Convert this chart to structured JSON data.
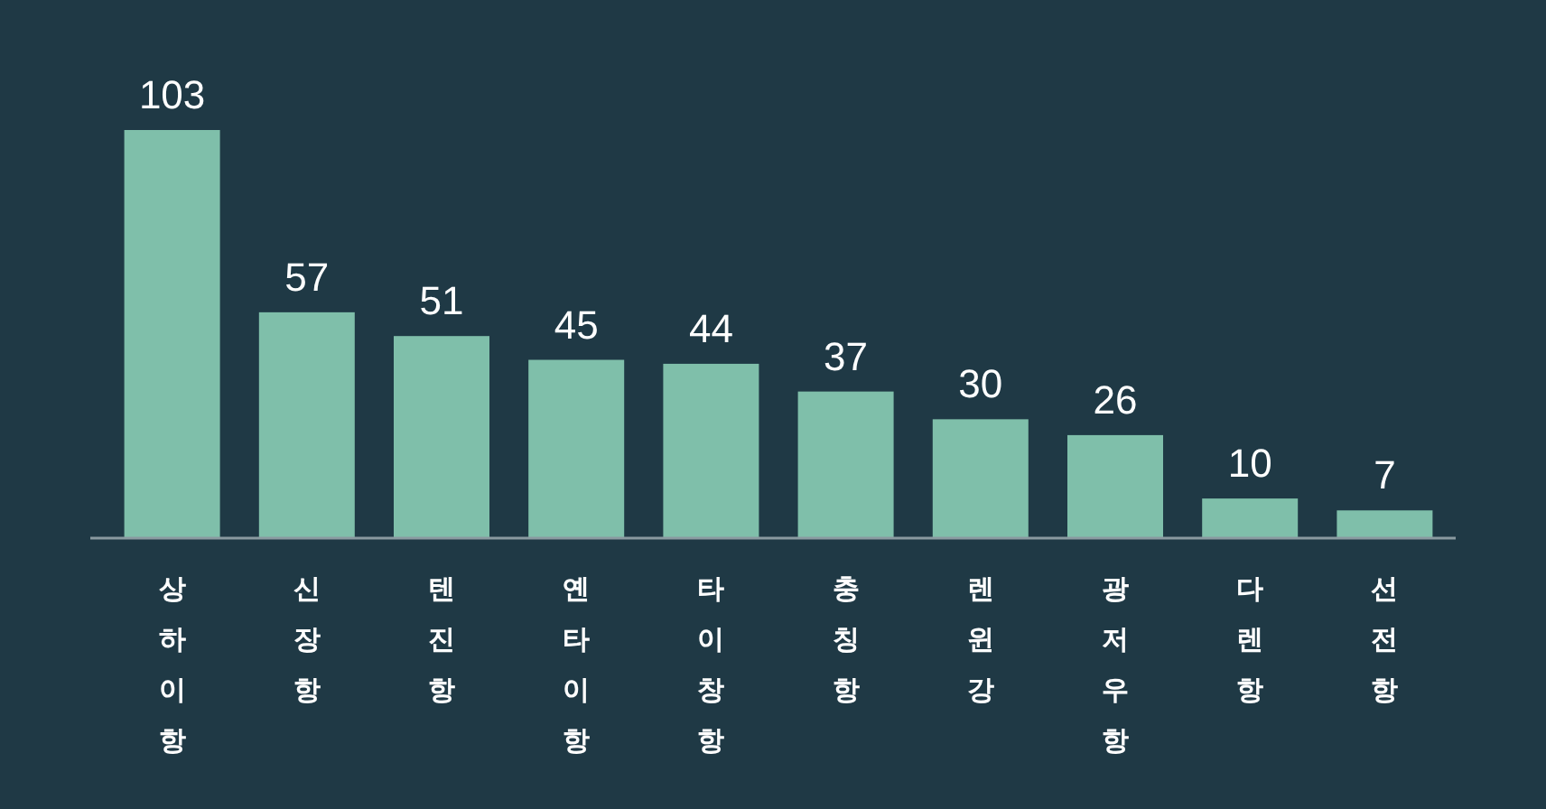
{
  "chart_data": {
    "type": "bar",
    "categories": [
      "상하이항",
      "신장항",
      "텐진항",
      "옌타이항",
      "타이창항",
      "충칭항",
      "렌윈강",
      "광저우항",
      "다렌항",
      "선전항"
    ],
    "values": [
      103,
      57,
      51,
      45,
      44,
      37,
      30,
      26,
      10,
      7
    ],
    "color": "#7fbfaa",
    "data_labels": true
  }
}
